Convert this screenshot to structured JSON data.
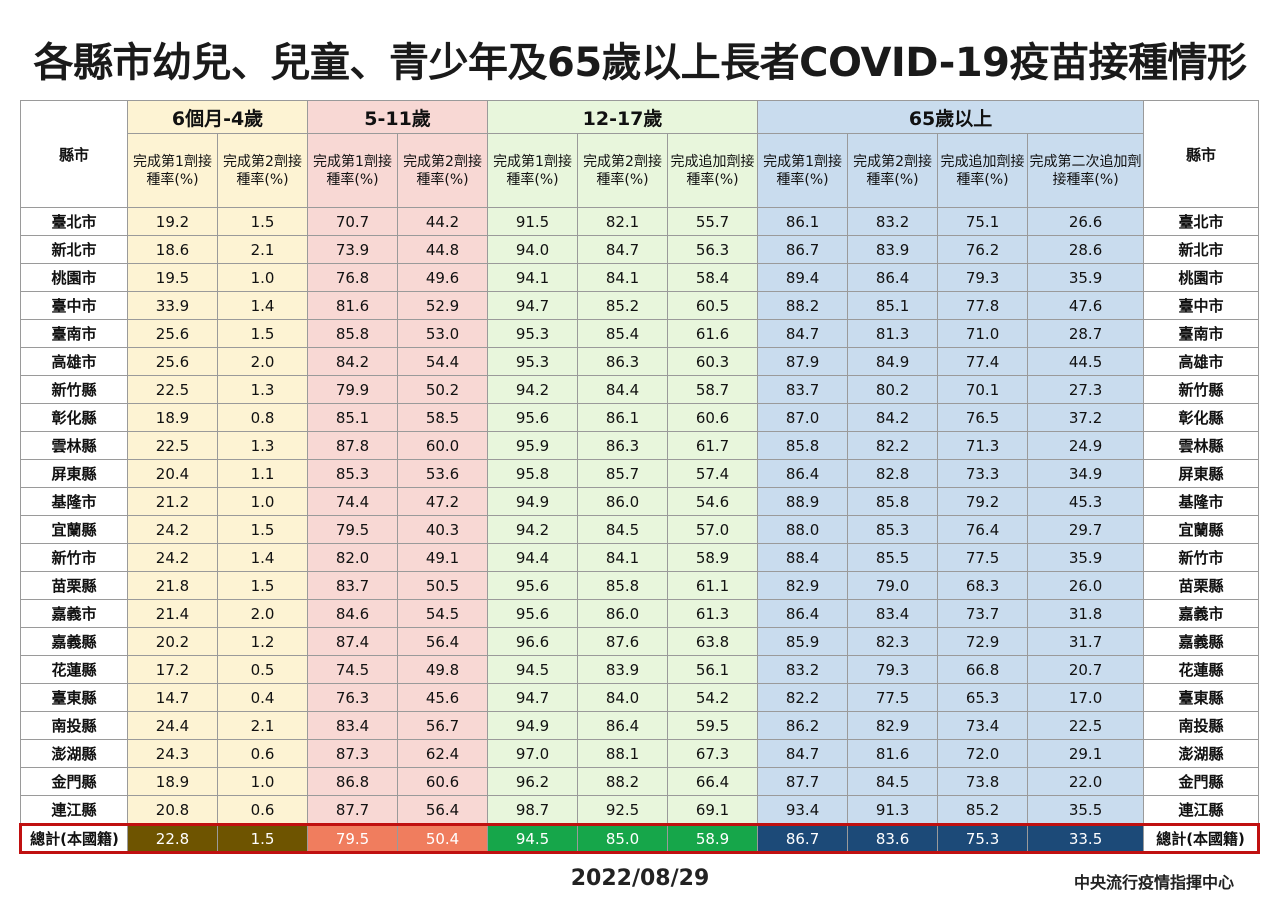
{
  "title": "各縣市幼兒、兒童、青少年及65歲以上長者COVID-19疫苗接種情形",
  "city_col_header": "縣市",
  "groups": [
    {
      "label": "6個月-4歲",
      "color": "#fdf3d3"
    },
    {
      "label": "5-11歲",
      "color": "#f8d8d4"
    },
    {
      "label": "12-17歲",
      "color": "#e8f6dc"
    },
    {
      "label": "65歲以上",
      "color": "#c9dcee"
    }
  ],
  "subheaders": [
    "完成第1劑接種率(%)",
    "完成第2劑接種率(%)",
    "完成第1劑接種率(%)",
    "完成第2劑接種率(%)",
    "完成第1劑接種率(%)",
    "完成第2劑接種率(%)",
    "完成追加劑接種率(%)",
    "完成第1劑接種率(%)",
    "完成第2劑接種率(%)",
    "完成追加劑接種率(%)",
    "完成第二次追加劑接種率(%)"
  ],
  "rows": [
    {
      "city": "臺北市",
      "v": [
        "19.2",
        "1.5",
        "70.7",
        "44.2",
        "91.5",
        "82.1",
        "55.7",
        "86.1",
        "83.2",
        "75.1",
        "26.6"
      ]
    },
    {
      "city": "新北市",
      "v": [
        "18.6",
        "2.1",
        "73.9",
        "44.8",
        "94.0",
        "84.7",
        "56.3",
        "86.7",
        "83.9",
        "76.2",
        "28.6"
      ]
    },
    {
      "city": "桃園市",
      "v": [
        "19.5",
        "1.0",
        "76.8",
        "49.6",
        "94.1",
        "84.1",
        "58.4",
        "89.4",
        "86.4",
        "79.3",
        "35.9"
      ]
    },
    {
      "city": "臺中市",
      "v": [
        "33.9",
        "1.4",
        "81.6",
        "52.9",
        "94.7",
        "85.2",
        "60.5",
        "88.2",
        "85.1",
        "77.8",
        "47.6"
      ]
    },
    {
      "city": "臺南市",
      "v": [
        "25.6",
        "1.5",
        "85.8",
        "53.0",
        "95.3",
        "85.4",
        "61.6",
        "84.7",
        "81.3",
        "71.0",
        "28.7"
      ]
    },
    {
      "city": "高雄市",
      "v": [
        "25.6",
        "2.0",
        "84.2",
        "54.4",
        "95.3",
        "86.3",
        "60.3",
        "87.9",
        "84.9",
        "77.4",
        "44.5"
      ]
    },
    {
      "city": "新竹縣",
      "v": [
        "22.5",
        "1.3",
        "79.9",
        "50.2",
        "94.2",
        "84.4",
        "58.7",
        "83.7",
        "80.2",
        "70.1",
        "27.3"
      ]
    },
    {
      "city": "彰化縣",
      "v": [
        "18.9",
        "0.8",
        "85.1",
        "58.5",
        "95.6",
        "86.1",
        "60.6",
        "87.0",
        "84.2",
        "76.5",
        "37.2"
      ]
    },
    {
      "city": "雲林縣",
      "v": [
        "22.5",
        "1.3",
        "87.8",
        "60.0",
        "95.9",
        "86.3",
        "61.7",
        "85.8",
        "82.2",
        "71.3",
        "24.9"
      ]
    },
    {
      "city": "屏東縣",
      "v": [
        "20.4",
        "1.1",
        "85.3",
        "53.6",
        "95.8",
        "85.7",
        "57.4",
        "86.4",
        "82.8",
        "73.3",
        "34.9"
      ]
    },
    {
      "city": "基隆市",
      "v": [
        "21.2",
        "1.0",
        "74.4",
        "47.2",
        "94.9",
        "86.0",
        "54.6",
        "88.9",
        "85.8",
        "79.2",
        "45.3"
      ]
    },
    {
      "city": "宜蘭縣",
      "v": [
        "24.2",
        "1.5",
        "79.5",
        "40.3",
        "94.2",
        "84.5",
        "57.0",
        "88.0",
        "85.3",
        "76.4",
        "29.7"
      ]
    },
    {
      "city": "新竹市",
      "v": [
        "24.2",
        "1.4",
        "82.0",
        "49.1",
        "94.4",
        "84.1",
        "58.9",
        "88.4",
        "85.5",
        "77.5",
        "35.9"
      ]
    },
    {
      "city": "苗栗縣",
      "v": [
        "21.8",
        "1.5",
        "83.7",
        "50.5",
        "95.6",
        "85.8",
        "61.1",
        "82.9",
        "79.0",
        "68.3",
        "26.0"
      ]
    },
    {
      "city": "嘉義市",
      "v": [
        "21.4",
        "2.0",
        "84.6",
        "54.5",
        "95.6",
        "86.0",
        "61.3",
        "86.4",
        "83.4",
        "73.7",
        "31.8"
      ]
    },
    {
      "city": "嘉義縣",
      "v": [
        "20.2",
        "1.2",
        "87.4",
        "56.4",
        "96.6",
        "87.6",
        "63.8",
        "85.9",
        "82.3",
        "72.9",
        "31.7"
      ]
    },
    {
      "city": "花蓮縣",
      "v": [
        "17.2",
        "0.5",
        "74.5",
        "49.8",
        "94.5",
        "83.9",
        "56.1",
        "83.2",
        "79.3",
        "66.8",
        "20.7"
      ]
    },
    {
      "city": "臺東縣",
      "v": [
        "14.7",
        "0.4",
        "76.3",
        "45.6",
        "94.7",
        "84.0",
        "54.2",
        "82.2",
        "77.5",
        "65.3",
        "17.0"
      ]
    },
    {
      "city": "南投縣",
      "v": [
        "24.4",
        "2.1",
        "83.4",
        "56.7",
        "94.9",
        "86.4",
        "59.5",
        "86.2",
        "82.9",
        "73.4",
        "22.5"
      ]
    },
    {
      "city": "澎湖縣",
      "v": [
        "24.3",
        "0.6",
        "87.3",
        "62.4",
        "97.0",
        "88.1",
        "67.3",
        "84.7",
        "81.6",
        "72.0",
        "29.1"
      ]
    },
    {
      "city": "金門縣",
      "v": [
        "18.9",
        "1.0",
        "86.8",
        "60.6",
        "96.2",
        "88.2",
        "66.4",
        "87.7",
        "84.5",
        "73.8",
        "22.0"
      ]
    },
    {
      "city": "連江縣",
      "v": [
        "20.8",
        "0.6",
        "87.7",
        "56.4",
        "98.7",
        "92.5",
        "69.1",
        "93.4",
        "91.3",
        "85.2",
        "35.5"
      ]
    }
  ],
  "total": {
    "label": "總計(本國籍)",
    "v": [
      "22.8",
      "1.5",
      "79.5",
      "50.4",
      "94.5",
      "85.0",
      "58.9",
      "86.7",
      "83.6",
      "75.3",
      "33.5"
    ],
    "colors": [
      "#6e5400",
      "#6e5400",
      "#f07d5e",
      "#f07d5e",
      "#16a64a",
      "#16a64a",
      "#16a64a",
      "#1c4a78",
      "#1c4a78",
      "#1c4a78",
      "#1c4a78"
    ]
  },
  "date": "2022/08/29",
  "organization": "中央流行疫情指揮中心"
}
